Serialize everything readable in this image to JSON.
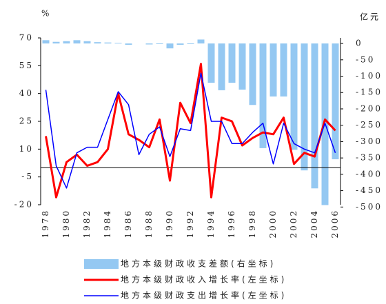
{
  "chart_data": {
    "type": "bar_line_dual",
    "y_label": "%",
    "y2_label": "亿元",
    "categories": [
      "1978",
      null,
      "1980",
      null,
      "1982",
      null,
      "1984",
      null,
      "1986",
      null,
      "1988",
      null,
      "1990",
      null,
      "1992",
      null,
      "1994",
      null,
      "1996",
      null,
      "1998",
      null,
      "2000",
      null,
      "2002",
      null,
      "2004",
      null,
      "2006"
    ],
    "ylim": [
      -20,
      70
    ],
    "yticks": [
      -20,
      -5,
      10,
      25,
      40,
      55,
      70
    ],
    "y2lim": [
      17,
      -493
    ],
    "y2ticks": [
      0,
      -50,
      -100,
      -150,
      -200,
      -250,
      -300,
      -350,
      -400,
      -450,
      -500
    ],
    "series": [
      {
        "name": "地方本级财政收支差额(右坐标)",
        "type": "bar",
        "axis": "y2",
        "color": "#94c8f2",
        "values": [
          10,
          5,
          7,
          10,
          7,
          4,
          3,
          2,
          -4,
          0,
          -3,
          -2,
          -15,
          -4,
          -2,
          12,
          -120,
          -143,
          -120,
          -141,
          -188,
          -320,
          -162,
          -162,
          -325,
          -388,
          -443,
          -494,
          -354
        ]
      },
      {
        "name": "地方本级财政收入增长率(左坐标)",
        "type": "line",
        "color": "#ff0000",
        "values": [
          17,
          -16,
          3,
          7,
          1,
          3,
          10,
          40,
          18,
          15,
          11,
          26,
          -7,
          35,
          24,
          56,
          -16,
          27,
          25,
          12,
          16,
          19,
          18,
          27,
          2,
          8,
          6,
          26,
          20
        ]
      },
      {
        "name": "地方本级财政支出增长率(左坐标)",
        "type": "line",
        "color": "#0000ff",
        "values": [
          42,
          1,
          -11,
          8,
          11,
          11,
          26,
          41,
          34,
          7,
          18,
          22,
          6,
          21,
          20,
          51,
          25,
          25,
          13,
          13,
          19,
          24,
          2,
          24,
          13,
          10,
          8,
          24,
          8
        ]
      }
    ]
  }
}
